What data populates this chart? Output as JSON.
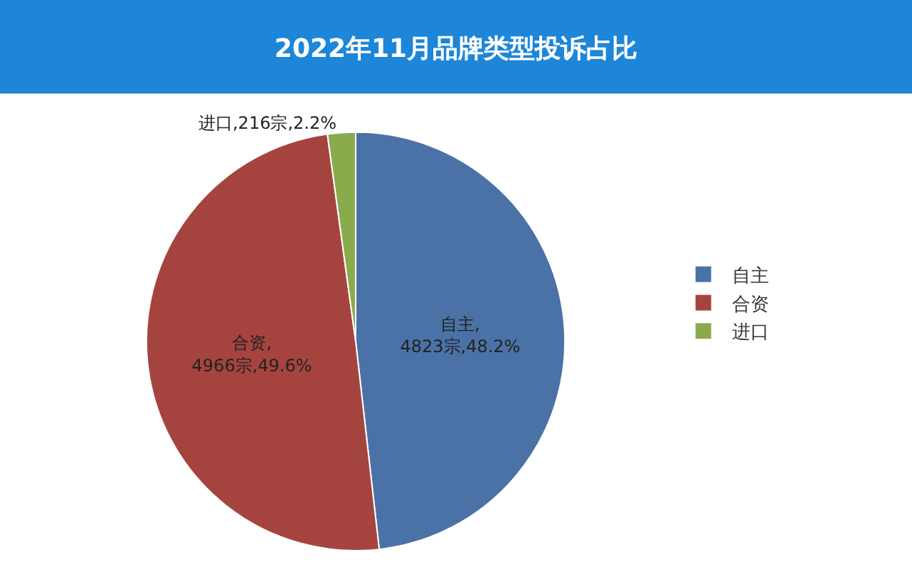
{
  "chart_data": {
    "type": "pie",
    "title": "2022年11月品牌类型投诉占比",
    "categories": [
      "自主",
      "合资",
      "进口"
    ],
    "values": [
      4823,
      4966,
      216
    ],
    "colors": [
      "#4a72a6",
      "#a5443f",
      "#8aab4b"
    ],
    "value_labels": [
      "自主,\n4823宗,48.2%",
      "合资,\n4966宗,49.6%",
      "进口,216宗,2.2%"
    ],
    "legend": "right"
  }
}
